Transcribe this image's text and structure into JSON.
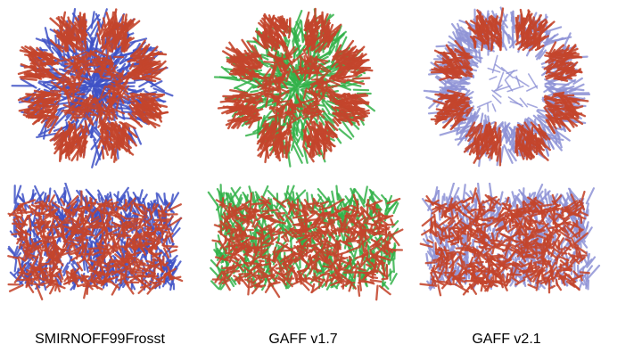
{
  "figure": {
    "captions": [
      "SMIRNOFF99Frosst",
      "GAFF v1.7",
      "GAFF v2.1"
    ],
    "colors": {
      "oxygen_red": "#c4452c",
      "panel1_carbon": "#3f52c6",
      "panel2_carbon": "#33b24a",
      "panel3_carbon": "#8f93d6"
    },
    "panels": [
      {
        "id": "smirnoff-top",
        "view": "top",
        "carbon_color": "#3f52c6",
        "ring": "filled"
      },
      {
        "id": "gaff17-top",
        "view": "top",
        "carbon_color": "#33b24a",
        "ring": "filled"
      },
      {
        "id": "gaff21-top",
        "view": "top",
        "carbon_color": "#8f93d6",
        "ring": "open"
      },
      {
        "id": "smirnoff-side",
        "view": "side",
        "carbon_color": "#3f52c6"
      },
      {
        "id": "gaff17-side",
        "view": "side",
        "carbon_color": "#33b24a"
      },
      {
        "id": "gaff21-side",
        "view": "side",
        "carbon_color": "#8f93d6"
      }
    ]
  }
}
